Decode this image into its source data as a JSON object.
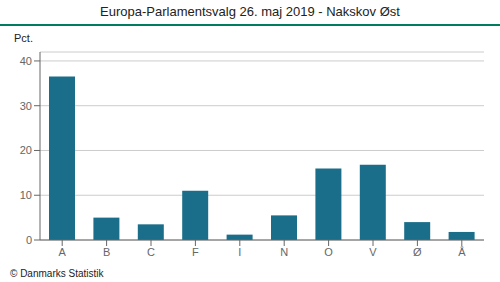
{
  "chart_data": {
    "type": "bar",
    "title": "Europa-Parlamentsvalg 26. maj 2019 - Nakskov Øst",
    "ylabel": "Pct.",
    "categories": [
      "A",
      "B",
      "C",
      "F",
      "I",
      "N",
      "O",
      "V",
      "Ø",
      "Å"
    ],
    "values": [
      36.5,
      5.0,
      3.5,
      11.0,
      1.2,
      5.5,
      16.0,
      16.8,
      4.0,
      1.8
    ],
    "color": "#1a6e8a",
    "ylim": [
      0,
      42
    ],
    "yticks": [
      0,
      10,
      20,
      30,
      40
    ],
    "grid": true,
    "annotations": [
      "© Danmarks Statistik"
    ]
  }
}
